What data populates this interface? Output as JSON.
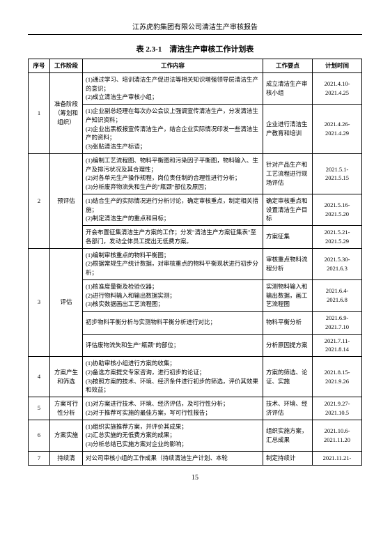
{
  "report_header": "江苏虎豹集团有限公司清洁生产审核报告",
  "table_title": "表 2.3-1　清洁生产审核工作计划表",
  "headers": {
    "seq": "序号",
    "stage": "工作阶段",
    "content": "工作内容",
    "points": "工作要点",
    "time": "计划时间"
  },
  "rows": [
    {
      "seq": "1",
      "stage": "准备阶段（筹划和组织）",
      "cells": [
        {
          "content": "(1)通过学习、培训清洁生产促进法等相关知识增强领导层清洁生产的意识；\n(2)成立清洁生产审核小组；",
          "points": "成立清洁生产审核小组",
          "time": "2021.4.10-2021.4.25"
        },
        {
          "content": "(1)企业副总经理在每次办公会议上强调宣传清洁生产，分发清洁生产知识资料；\n(2)企业出黑板报宣传清洁生产，结合企业实际情况印发一些清洁生产的资料；\n(3)张贴清洁生产标语；",
          "points": "企业进行清洁生产教育和培训",
          "time": "2021.4.26-2021.4.29"
        }
      ]
    },
    {
      "seq": "2",
      "stage": "预评估",
      "cells": [
        {
          "content": "(1)编制工艺流程图、物料平衡图和污染因子平衡图，物料输入、生产及排污状况及其合理性；\n(2)对各单元生产操作规程，岗位责任制的合理性进行分析；\n(3)分析废弃物流失和生产的\"瓶颈\"部位及原因；",
          "points": "针对产品生产和工艺流程进行现场评估",
          "time": "2021.5.1-2021.5.15"
        },
        {
          "content": "(1)结合生产的实际情况进行分析讨论，确定审核重点，制定相关措施；\n(2)制定清洁生产的重点和目标；",
          "points": "确定审核重点和设置清洁生产目标",
          "time": "2021.5.16-2021.5.20"
        },
        {
          "content": "开会布置征集清洁生产方案的工作；分发\"清洁生产方案征集表\"至各部门，发动全体员工提出无低费方案。",
          "points": "方案征集",
          "time": "2021.5.21-2021.5.29"
        }
      ]
    },
    {
      "seq": "3",
      "stage": "评估",
      "cells": [
        {
          "content": "(1)编制审核重点的物料平衡图；\n(2)根据常规生产统计数据，对审核重点的物料平衡现状进行初步分析；",
          "points": "审核重点物料流程分析",
          "time": "2021.5.30-2021.6.3"
        },
        {
          "content": "(1)核准度量衡及检验仪器；\n(2)进行物料输入和输出数据实测；\n(3)核实数据画出工艺流程图；",
          "points": "实测物料输入和输出数据，画工艺流程图",
          "time": "2021.6.4-2021.6.8"
        },
        {
          "content": "初步物料平衡分析与实测物料平衡分析进行对比；",
          "points": "物料平衡分析",
          "time": "2021.6.9-2021.7.10"
        },
        {
          "content": "评估废物流失和生产\"瓶颈\"的部位；",
          "points": "分析原因提方案",
          "time": "2021.7.11-2021.8.14"
        }
      ]
    },
    {
      "seq": "4",
      "stage": "方案产生和筛选",
      "cells": [
        {
          "content": "(1)协助审核小组进行方案的收集；\n(2)备选方案提交专家咨询，进行初步的论证；\n(3)按照方案的技术、环境、经济条件进行初步的筛选，评价其效果和效益；",
          "points": "方案的筛选、论证、实施",
          "time": "2021.8.15-2021.9.26"
        }
      ]
    },
    {
      "seq": "5",
      "stage": "方案可行性分析",
      "cells": [
        {
          "content": "(1)对方案进行技术、环境、经济评估，及可行性分析；\n(2)对于推荐可实施的最佳方案，写可行性报告；",
          "points": "技术、环境、经济评估",
          "time": "2021.9.27-2021.10.5"
        }
      ]
    },
    {
      "seq": "6",
      "stage": "方案实施",
      "cells": [
        {
          "content": "(1)组织实施推荐方案，并评价其成果；\n(2)汇总实施的无低费方案的成果；\n(3)分析总结已实施方案对企业的影响；",
          "points": "组织实施方案，汇总成果",
          "time": "2021.10.6-2021.11.20"
        }
      ]
    },
    {
      "seq": "7",
      "stage": "持续清",
      "cells": [
        {
          "content": "对公司审核小组的工作成果（持续清洁生产计划、本轮",
          "points": "制定持续计",
          "time": "2021.11.21-"
        }
      ]
    }
  ],
  "page_number": "15"
}
